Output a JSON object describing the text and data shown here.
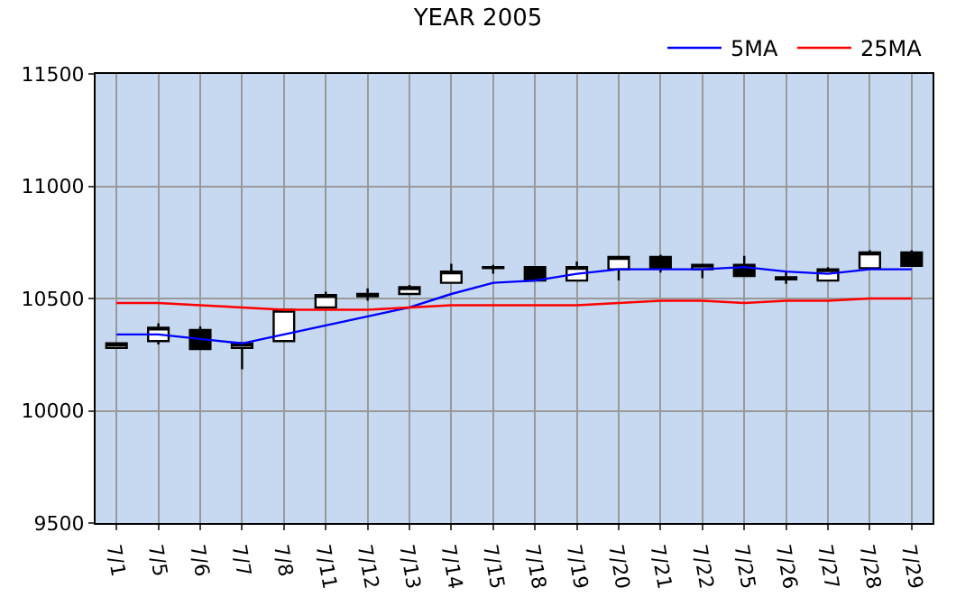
{
  "chart_data": {
    "type": "candlestick",
    "title": "YEAR 2005",
    "categories": [
      "7/1",
      "7/5",
      "7/6",
      "7/7",
      "7/8",
      "7/11",
      "7/12",
      "7/13",
      "7/14",
      "7/15",
      "7/18",
      "7/19",
      "7/20",
      "7/21",
      "7/22",
      "7/25",
      "7/26",
      "7/27",
      "7/28",
      "7/29"
    ],
    "ohlc": [
      [
        10280,
        10300,
        10275,
        10300
      ],
      [
        10310,
        10390,
        10295,
        10370
      ],
      [
        10360,
        10375,
        10275,
        10275
      ],
      [
        10280,
        10305,
        10185,
        10300
      ],
      [
        10310,
        10455,
        10310,
        10450
      ],
      [
        10460,
        10530,
        10460,
        10515
      ],
      [
        10510,
        10545,
        10490,
        10520
      ],
      [
        10520,
        10560,
        10520,
        10550
      ],
      [
        10570,
        10655,
        10570,
        10620
      ],
      [
        10635,
        10650,
        10610,
        10640
      ],
      [
        10640,
        10640,
        10580,
        10580
      ],
      [
        10580,
        10665,
        10580,
        10640
      ],
      [
        10630,
        10685,
        10580,
        10685
      ],
      [
        10685,
        10695,
        10615,
        10635
      ],
      [
        10630,
        10655,
        10590,
        10650
      ],
      [
        10650,
        10690,
        10600,
        10600
      ],
      [
        10595,
        10620,
        10565,
        10585
      ],
      [
        10580,
        10640,
        10580,
        10630
      ],
      [
        10635,
        10715,
        10635,
        10705
      ],
      [
        10705,
        10715,
        10645,
        10645
      ]
    ],
    "series": [
      {
        "name": "5MA",
        "type": "line",
        "color": "#0000ff",
        "values": [
          10340,
          10340,
          10320,
          10300,
          10340,
          10380,
          10420,
          10460,
          10520,
          10570,
          10580,
          10610,
          10630,
          10630,
          10630,
          10640,
          10620,
          10610,
          10630,
          10630
        ]
      },
      {
        "name": "25MA",
        "type": "line",
        "color": "#ff0000",
        "values": [
          10480,
          10480,
          10470,
          10460,
          10450,
          10450,
          10450,
          10460,
          10470,
          10470,
          10470,
          10470,
          10480,
          10490,
          10490,
          10480,
          10490,
          10490,
          10500,
          10500
        ]
      }
    ],
    "ylim": [
      9500,
      11500
    ],
    "yticks": [
      9500,
      10000,
      10500,
      11000,
      11500
    ],
    "grid": true,
    "legend": "top right",
    "marker": "none"
  }
}
